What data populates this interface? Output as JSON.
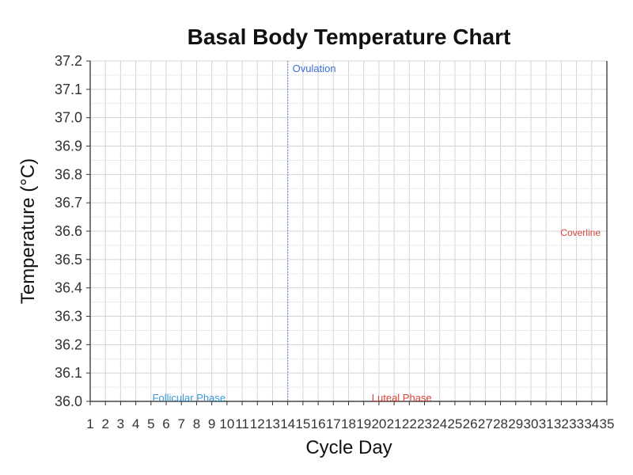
{
  "chart_data": {
    "type": "line",
    "title": "Basal Body Temperature Chart",
    "xlabel": "Cycle Day",
    "ylabel": "Temperature (°C)",
    "xlim": [
      1,
      35
    ],
    "ylim": [
      36.0,
      37.2
    ],
    "x_ticks": [
      1,
      2,
      3,
      4,
      5,
      6,
      7,
      8,
      9,
      10,
      11,
      12,
      13,
      14,
      15,
      16,
      17,
      18,
      19,
      20,
      21,
      22,
      23,
      24,
      25,
      26,
      27,
      28,
      29,
      30,
      31,
      32,
      33,
      34,
      35
    ],
    "y_ticks": [
      "36.0",
      "36.1",
      "36.2",
      "36.3",
      "36.4",
      "36.5",
      "36.6",
      "36.7",
      "36.8",
      "36.9",
      "37.0",
      "37.1",
      "37.2"
    ],
    "grid": true,
    "series": [],
    "vline": {
      "x": 14,
      "label": "Ovulation",
      "color": "#3a6fd8",
      "style": "dotted"
    },
    "coverline": {
      "y": 36.6,
      "label": "Coverline",
      "color": "#d9453c"
    },
    "phases": [
      {
        "label": "Follicular Phase",
        "x_center": 7.5,
        "color": "#3a98d6"
      },
      {
        "label": "Luteal Phase",
        "x_center": 21.5,
        "color": "#d9453c"
      }
    ]
  }
}
